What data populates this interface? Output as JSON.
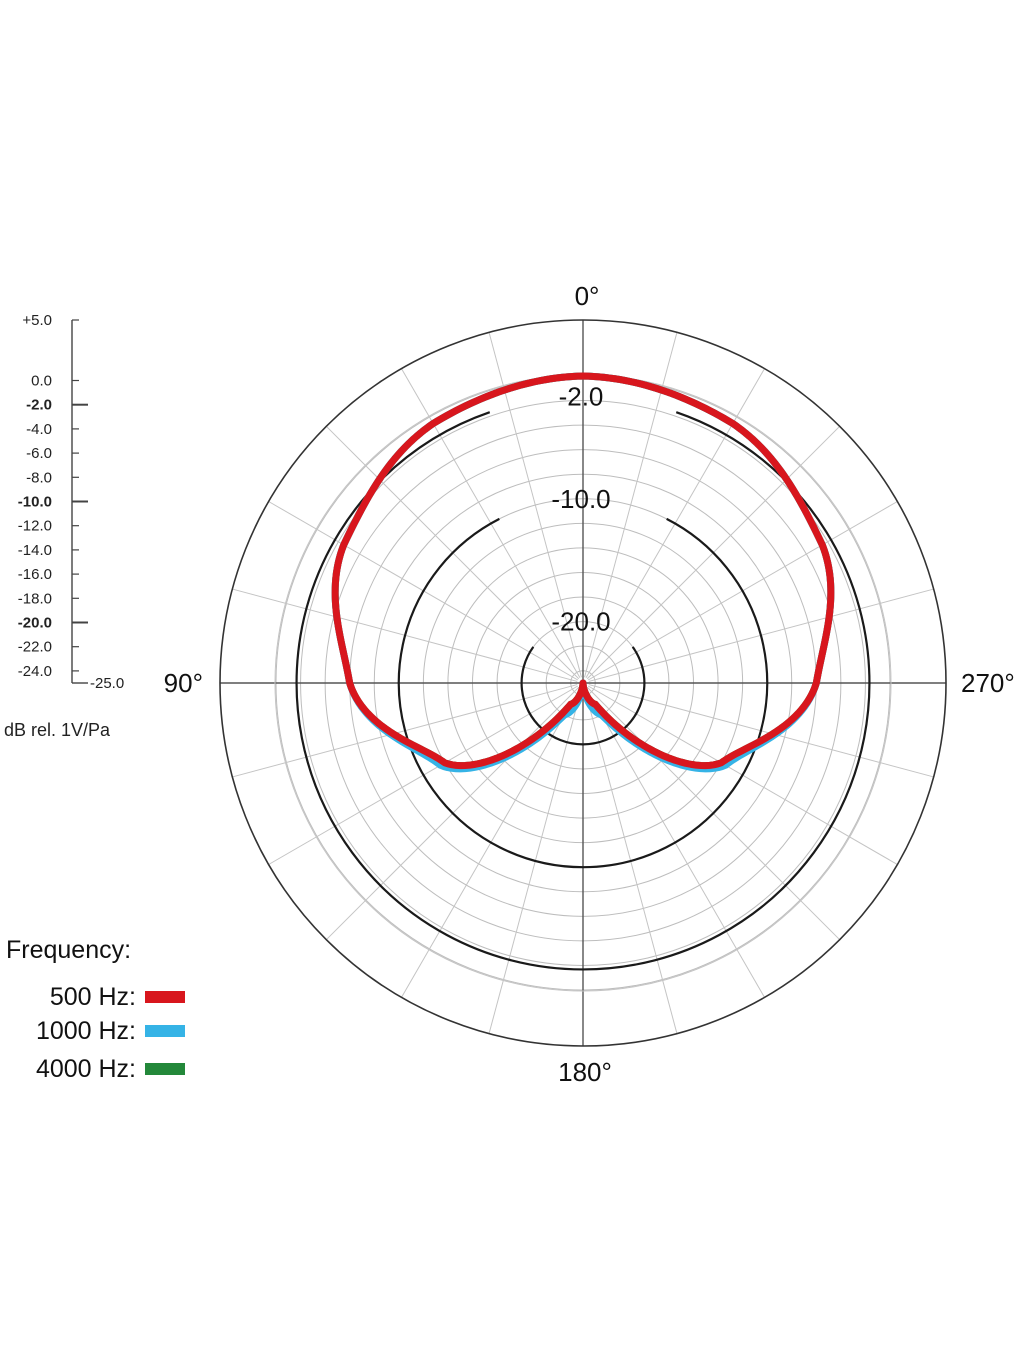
{
  "chart_data": {
    "type": "polar",
    "angle_labels": [
      "0°",
      "90°",
      "180°",
      "270°"
    ],
    "angle_values_deg": [
      0,
      90,
      180,
      270
    ],
    "radial_unit_label": "dB rel. 1V/Pa",
    "radial_range_db": [
      -25.0,
      5.0
    ],
    "scale_ticks": [
      {
        "value": 5.0,
        "label": "+5.0",
        "bold": false
      },
      {
        "value": 0.0,
        "label": "0.0",
        "bold": false
      },
      {
        "value": -2.0,
        "label": "-2.0",
        "bold": true
      },
      {
        "value": -4.0,
        "label": "-4.0",
        "bold": false
      },
      {
        "value": -6.0,
        "label": "-6.0",
        "bold": false
      },
      {
        "value": -8.0,
        "label": "-8.0",
        "bold": false
      },
      {
        "value": -10.0,
        "label": "-10.0",
        "bold": true
      },
      {
        "value": -12.0,
        "label": "-12.0",
        "bold": false
      },
      {
        "value": -14.0,
        "label": "-14.0",
        "bold": false
      },
      {
        "value": -16.0,
        "label": "-16.0",
        "bold": false
      },
      {
        "value": -18.0,
        "label": "-18.0",
        "bold": false
      },
      {
        "value": -20.0,
        "label": "-20.0",
        "bold": true
      },
      {
        "value": -22.0,
        "label": "-22.0",
        "bold": false
      },
      {
        "value": -24.0,
        "label": "-24.0",
        "bold": false
      },
      {
        "value": -25.0,
        "label": "-25.0",
        "bold": false
      }
    ],
    "highlight_rings": [
      {
        "value": -2.0,
        "label": "-2.0"
      },
      {
        "value": -10.0,
        "label": "-10.0"
      },
      {
        "value": -20.0,
        "label": "-20.0"
      }
    ],
    "spoke_step_deg": 15,
    "pattern": "cardioid",
    "series": [
      {
        "name": "500 Hz",
        "color": "#d8161d",
        "angle_deg": [
          0,
          30,
          60,
          90,
          120,
          150,
          180
        ],
        "db": [
          0.0,
          -0.6,
          -2.5,
          -6.0,
          -12.0,
          -23.0,
          -25.0
        ]
      },
      {
        "name": "1000 Hz",
        "color": "#35b3e6",
        "angle_deg": [
          0,
          30,
          60,
          90,
          120,
          150,
          180
        ],
        "db": [
          0.0,
          -0.6,
          -2.5,
          -6.0,
          -11.6,
          -22.0,
          -25.0
        ]
      },
      {
        "name": "4000 Hz",
        "color": "#23883a",
        "angle_deg": [
          0,
          30,
          60,
          90,
          120,
          150,
          180
        ],
        "db": [
          0.0,
          -0.6,
          -2.5,
          -6.0,
          -12.0,
          -23.0,
          -25.0
        ]
      }
    ],
    "legend_title": "Frequency:",
    "legend_placement": "bottom-left"
  }
}
